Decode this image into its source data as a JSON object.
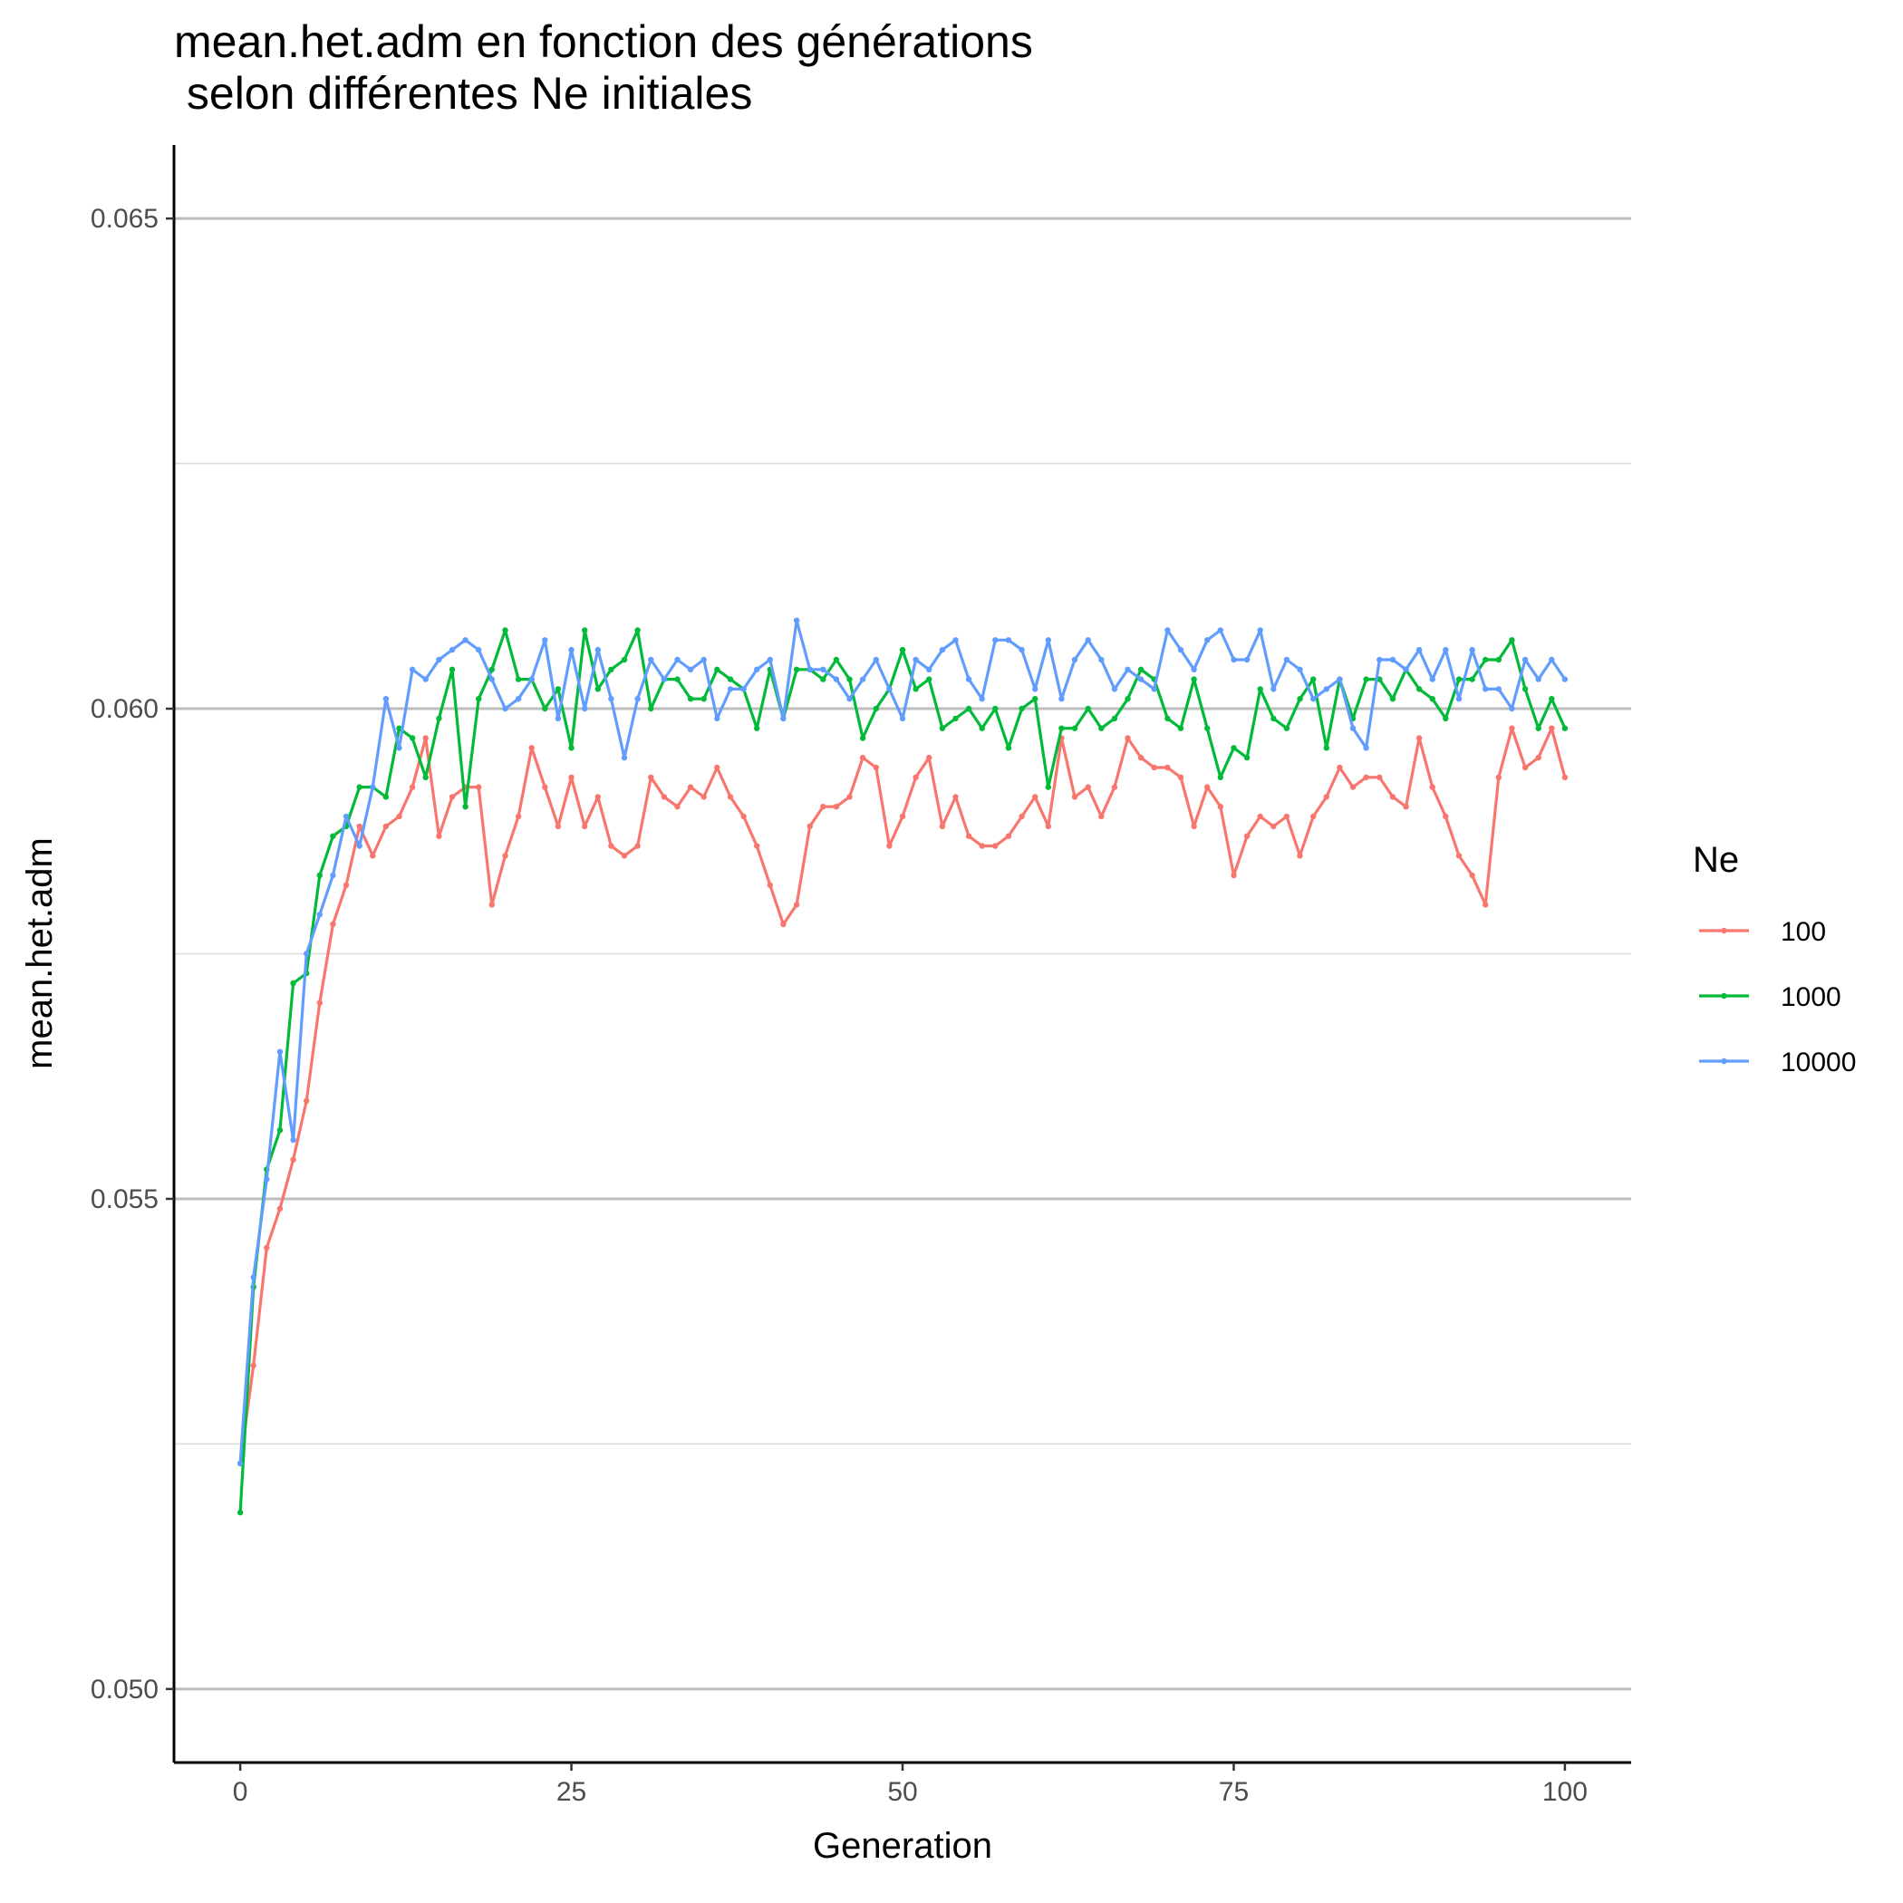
{
  "chart_data": {
    "type": "line",
    "title_lines": [
      "mean.het.adm en fonction des générations",
      " selon différentes Ne initiales"
    ],
    "xlabel": "Generation",
    "ylabel": "mean.het.adm",
    "xlim": [
      -5,
      105
    ],
    "ylim": [
      0.04925,
      0.06575
    ],
    "x_ticks": [
      0,
      25,
      50,
      75,
      100
    ],
    "x_tick_labels": [
      "0",
      "25",
      "50",
      "75",
      "100"
    ],
    "y_ticks": [
      0.05,
      0.055,
      0.06,
      0.065
    ],
    "y_tick_labels": [
      "0.050",
      "0.055",
      "0.060",
      "0.065"
    ],
    "y_minor_grid": [
      0.0525,
      0.0575,
      0.0625
    ],
    "grid": "horizontal",
    "legend": {
      "title": "Ne",
      "position": "right"
    },
    "x": [
      0,
      1,
      2,
      3,
      4,
      5,
      6,
      7,
      8,
      9,
      10,
      11,
      12,
      13,
      14,
      15,
      16,
      17,
      18,
      19,
      20,
      21,
      22,
      23,
      24,
      25,
      26,
      27,
      28,
      29,
      30,
      31,
      32,
      33,
      34,
      35,
      36,
      37,
      38,
      39,
      40,
      41,
      42,
      43,
      44,
      45,
      46,
      47,
      48,
      49,
      50,
      51,
      52,
      53,
      54,
      55,
      56,
      57,
      58,
      59,
      60,
      61,
      62,
      63,
      64,
      65,
      66,
      67,
      68,
      69,
      70,
      71,
      72,
      73,
      74,
      75,
      76,
      77,
      78,
      79,
      80,
      81,
      82,
      83,
      84,
      85,
      86,
      87,
      88,
      89,
      90,
      91,
      92,
      93,
      94,
      95,
      96,
      97,
      98,
      99,
      100
    ],
    "series": [
      {
        "name": "100",
        "color": "#f8766d",
        "values": [
          0.0523,
          0.0533,
          0.0545,
          0.0549,
          0.0554,
          0.056,
          0.057,
          0.0578,
          0.0582,
          0.0588,
          0.0585,
          0.0588,
          0.0589,
          0.0592,
          0.0597,
          0.0587,
          0.0591,
          0.0592,
          0.0592,
          0.058,
          0.0585,
          0.0589,
          0.0596,
          0.0592,
          0.0588,
          0.0593,
          0.0588,
          0.0591,
          0.0586,
          0.0585,
          0.0586,
          0.0593,
          0.0591,
          0.059,
          0.0592,
          0.0591,
          0.0594,
          0.0591,
          0.0589,
          0.0586,
          0.0582,
          0.0578,
          0.058,
          0.0588,
          0.059,
          0.059,
          0.0591,
          0.0595,
          0.0594,
          0.0586,
          0.0589,
          0.0593,
          0.0595,
          0.0588,
          0.0591,
          0.0587,
          0.0586,
          0.0586,
          0.0587,
          0.0589,
          0.0591,
          0.0588,
          0.0597,
          0.0591,
          0.0592,
          0.0589,
          0.0592,
          0.0597,
          0.0595,
          0.0594,
          0.0594,
          0.0593,
          0.0588,
          0.0592,
          0.059,
          0.0583,
          0.0587,
          0.0589,
          0.0588,
          0.0589,
          0.0585,
          0.0589,
          0.0591,
          0.0594,
          0.0592,
          0.0593,
          0.0593,
          0.0591,
          0.059,
          0.0597,
          0.0592,
          0.0589,
          0.0585,
          0.0583,
          0.058,
          0.0593,
          0.0598,
          0.0594,
          0.0595,
          0.0598,
          0.0593
        ]
      },
      {
        "name": "1000",
        "color": "#00ba38",
        "values": [
          0.0518,
          0.0541,
          0.0553,
          0.0557,
          0.0572,
          0.0573,
          0.0583,
          0.0587,
          0.0588,
          0.0592,
          0.0592,
          0.0591,
          0.0598,
          0.0597,
          0.0593,
          0.0599,
          0.0604,
          0.059,
          0.0601,
          0.0604,
          0.0608,
          0.0603,
          0.0603,
          0.06,
          0.0602,
          0.0596,
          0.0608,
          0.0602,
          0.0604,
          0.0605,
          0.0608,
          0.06,
          0.0603,
          0.0603,
          0.0601,
          0.0601,
          0.0604,
          0.0603,
          0.0602,
          0.0598,
          0.0604,
          0.0599,
          0.0604,
          0.0604,
          0.0603,
          0.0605,
          0.0603,
          0.0597,
          0.06,
          0.0602,
          0.0606,
          0.0602,
          0.0603,
          0.0598,
          0.0599,
          0.06,
          0.0598,
          0.06,
          0.0596,
          0.06,
          0.0601,
          0.0592,
          0.0598,
          0.0598,
          0.06,
          0.0598,
          0.0599,
          0.0601,
          0.0604,
          0.0603,
          0.0599,
          0.0598,
          0.0603,
          0.0598,
          0.0593,
          0.0596,
          0.0595,
          0.0602,
          0.0599,
          0.0598,
          0.0601,
          0.0603,
          0.0596,
          0.0603,
          0.0599,
          0.0603,
          0.0603,
          0.0601,
          0.0604,
          0.0602,
          0.0601,
          0.0599,
          0.0603,
          0.0603,
          0.0605,
          0.0605,
          0.0607,
          0.0602,
          0.0598,
          0.0601,
          0.0598
        ]
      },
      {
        "name": "10000",
        "color": "#619cff",
        "values": [
          0.0523,
          0.0542,
          0.0552,
          0.0565,
          0.0556,
          0.0575,
          0.0579,
          0.0583,
          0.0589,
          0.0586,
          0.0592,
          0.0601,
          0.0596,
          0.0604,
          0.0603,
          0.0605,
          0.0606,
          0.0607,
          0.0606,
          0.0603,
          0.06,
          0.0601,
          0.0603,
          0.0607,
          0.0599,
          0.0606,
          0.06,
          0.0606,
          0.0601,
          0.0595,
          0.0601,
          0.0605,
          0.0603,
          0.0605,
          0.0604,
          0.0605,
          0.0599,
          0.0602,
          0.0602,
          0.0604,
          0.0605,
          0.0599,
          0.0609,
          0.0604,
          0.0604,
          0.0603,
          0.0601,
          0.0603,
          0.0605,
          0.0602,
          0.0599,
          0.0605,
          0.0604,
          0.0606,
          0.0607,
          0.0603,
          0.0601,
          0.0607,
          0.0607,
          0.0606,
          0.0602,
          0.0607,
          0.0601,
          0.0605,
          0.0607,
          0.0605,
          0.0602,
          0.0604,
          0.0603,
          0.0602,
          0.0608,
          0.0606,
          0.0604,
          0.0607,
          0.0608,
          0.0605,
          0.0605,
          0.0608,
          0.0602,
          0.0605,
          0.0604,
          0.0601,
          0.0602,
          0.0603,
          0.0598,
          0.0596,
          0.0605,
          0.0605,
          0.0604,
          0.0606,
          0.0603,
          0.0606,
          0.0601,
          0.0606,
          0.0602,
          0.0602,
          0.06,
          0.0605,
          0.0603,
          0.0605,
          0.0603
        ]
      }
    ]
  }
}
